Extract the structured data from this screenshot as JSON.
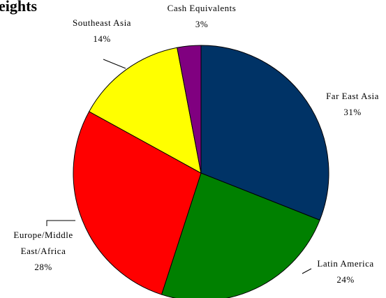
{
  "chart_data": {
    "type": "pie",
    "title": "eights",
    "categories": [
      "Far East Asia",
      "Latin America",
      "Europe/Middle East/Africa",
      "Southeast Asia",
      "Cash Equivalents"
    ],
    "values": [
      31,
      24,
      28,
      14,
      3
    ],
    "value_labels": [
      "31%",
      "24%",
      "28%",
      "14%",
      "3%"
    ],
    "colors": [
      "#003366",
      "#008000",
      "#ff0000",
      "#ffff00",
      "#800080"
    ]
  }
}
